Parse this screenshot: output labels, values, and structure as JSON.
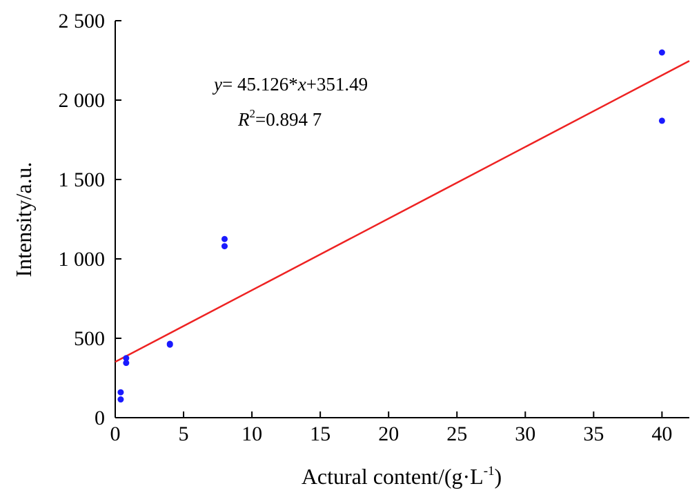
{
  "chart_data": {
    "type": "scatter",
    "xlabel": "Actural content/(g·L",
    "xlabel_sup": "-1",
    "xlabel_close": ")",
    "ylabel": "Intensity/a.u.",
    "xlim": [
      0,
      42
    ],
    "ylim": [
      0,
      2500
    ],
    "x_ticks": [
      0,
      5,
      10,
      15,
      20,
      25,
      30,
      35,
      40
    ],
    "x_tick_labels": [
      "0",
      "5",
      "10",
      "15",
      "20",
      "25",
      "30",
      "35",
      "40"
    ],
    "y_ticks": [
      0,
      500,
      1000,
      1500,
      2000,
      2500
    ],
    "y_tick_labels": [
      "0",
      "500",
      "1 000",
      "1 500",
      "2 000",
      "2 500"
    ],
    "grid": false,
    "points": [
      {
        "x": 0.4,
        "y": 160
      },
      {
        "x": 0.4,
        "y": 115
      },
      {
        "x": 0.8,
        "y": 375
      },
      {
        "x": 0.8,
        "y": 345
      },
      {
        "x": 4,
        "y": 465
      },
      {
        "x": 4,
        "y": 460
      },
      {
        "x": 8,
        "y": 1125
      },
      {
        "x": 8,
        "y": 1080
      },
      {
        "x": 40,
        "y": 2300
      },
      {
        "x": 40,
        "y": 1870
      }
    ],
    "fit": {
      "slope": 45.126,
      "intercept": 351.49,
      "x_range": [
        0,
        42
      ]
    },
    "equation": {
      "y_var": "y",
      "eq_mid": "= 45.126*",
      "x_var": "x",
      "eq_end": "+351.49",
      "r_var": "R",
      "r_sup": "2",
      "r_val": "=0.894 7"
    },
    "colors": {
      "points": "#1a1aff",
      "fit_line": "#ee2222",
      "axes": "#000000"
    }
  }
}
